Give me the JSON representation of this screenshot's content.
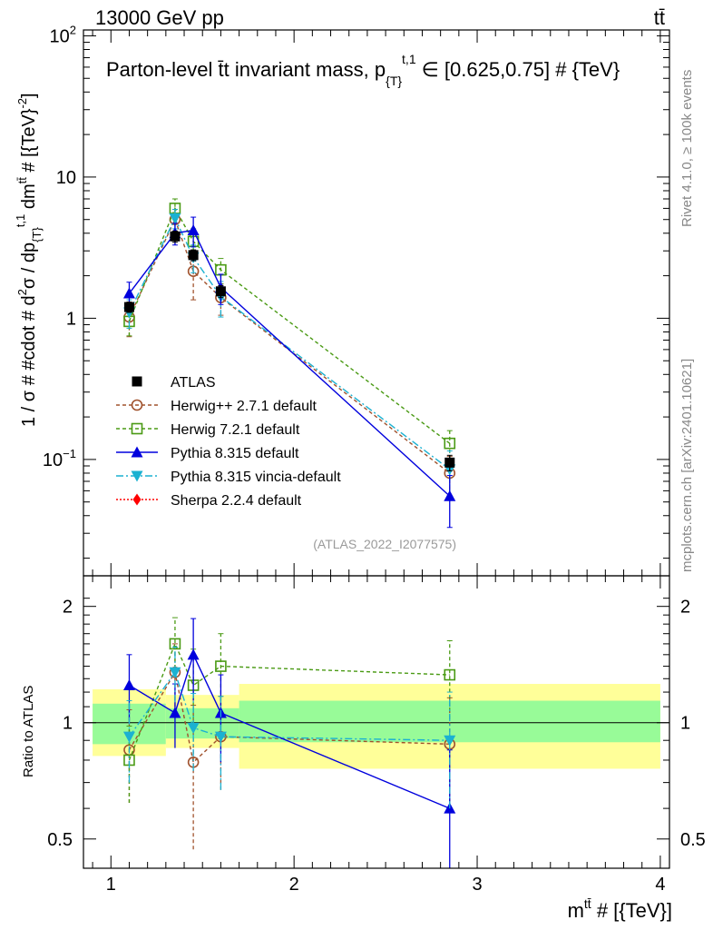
{
  "header": {
    "energy_label": "13000 GeV pp",
    "process_label": "tt̄"
  },
  "side_labels": {
    "rivet": "Rivet 4.1.0, ≥ 100k events",
    "mcplots": "mcplots.cern.ch [arXiv:2401.10621]"
  },
  "chart_data": [
    {
      "type": "scatter",
      "panel": "main",
      "title": "Parton-level t̄t invariant mass, p{T}t,1 ∈ [0.625,0.75] # {TeV}",
      "title_main": "Parton-level t̄t invariant mass, p",
      "title_sub": "{T}",
      "title_sup": "t,1",
      "title_tail": "∈ [0.625,0.75] # {TeV}",
      "ylabel": "1 / σ # #cdot # d²σ / dp{T}t,1 dmtt̄ # [{TeV}⁻²]",
      "ylabel_parts": [
        "1 / σ # #cdot # d",
        "2",
        "σ / dp",
        "{T}",
        "t,1",
        " dm",
        "tt̄",
        " # [{TeV}",
        "-2",
        "]"
      ],
      "yscale": "log",
      "ylim": [
        0.015,
        110
      ],
      "xlim": [
        0.85,
        4.05
      ],
      "y_ticks": [
        {
          "value": 100,
          "label": "10",
          "exp": "2"
        },
        {
          "value": 10,
          "label": "10",
          "exp": ""
        },
        {
          "value": 1,
          "label": "1",
          "exp": ""
        },
        {
          "value": 0.1,
          "label": "10",
          "exp": "−1"
        }
      ],
      "watermark": "(ATLAS_2022_I2077575)",
      "legend_position": "lower-left",
      "series": [
        {
          "name": "ATLAS",
          "color": "#000000",
          "marker": "square-filled",
          "dash": "none",
          "x": [
            1.1,
            1.35,
            1.45,
            1.6,
            2.85
          ],
          "values": [
            1.2,
            3.8,
            2.8,
            1.55,
            0.095
          ],
          "err_lo": [
            0.1,
            0.35,
            0.25,
            0.15,
            0.012
          ],
          "err_hi": [
            0.1,
            0.35,
            0.25,
            0.15,
            0.012
          ]
        },
        {
          "name": "Herwig++ 2.7.1 default",
          "color": "#a0522d",
          "marker": "circle-open",
          "dash": "4,3",
          "x": [
            1.1,
            1.35,
            1.45,
            1.6,
            2.85
          ],
          "values": [
            1.02,
            5.0,
            2.15,
            1.4,
            0.08
          ],
          "err_lo": [
            0.28,
            0.9,
            0.8,
            0.35,
            0.025
          ],
          "err_hi": [
            0.28,
            0.9,
            0.8,
            0.35,
            0.025
          ]
        },
        {
          "name": "Herwig 7.2.1 default",
          "color": "#4a9a14",
          "marker": "square-open",
          "dash": "4,3",
          "x": [
            1.1,
            1.35,
            1.45,
            1.6,
            2.85
          ],
          "values": [
            0.95,
            6.0,
            3.5,
            2.2,
            0.13
          ],
          "err_lo": [
            0.2,
            1.0,
            0.8,
            0.45,
            0.03
          ],
          "err_hi": [
            0.2,
            1.0,
            0.8,
            0.45,
            0.03
          ]
        },
        {
          "name": "Pythia 8.315 default",
          "color": "#0000dd",
          "marker": "triangle-up",
          "dash": "none",
          "x": [
            1.1,
            1.35,
            1.45,
            1.6,
            2.85
          ],
          "values": [
            1.5,
            4.0,
            4.2,
            1.65,
            0.055
          ],
          "err_lo": [
            0.3,
            0.7,
            1.0,
            0.4,
            0.022
          ],
          "err_hi": [
            0.3,
            0.7,
            1.0,
            0.4,
            0.022
          ]
        },
        {
          "name": "Pythia 8.315 vincia-default",
          "color": "#1bb1d1",
          "marker": "triangle-down",
          "dash": "8,3,2,3",
          "x": [
            1.1,
            1.35,
            1.45,
            1.6,
            2.85
          ],
          "values": [
            1.1,
            5.1,
            2.7,
            1.42,
            0.085
          ],
          "err_lo": [
            0.25,
            0.8,
            0.6,
            0.4,
            0.03
          ],
          "err_hi": [
            0.25,
            0.8,
            0.6,
            0.4,
            0.03
          ]
        },
        {
          "name": "Sherpa 2.2.4 default",
          "color": "#ff0000",
          "marker": "diamond",
          "dash": "2,2",
          "x": [],
          "values": [],
          "err_lo": [],
          "err_hi": []
        }
      ]
    },
    {
      "type": "scatter",
      "panel": "ratio",
      "ylabel": "Ratio to ATLAS",
      "xlabel": "mtt̄ # [{TeV}]",
      "xlabel_main": "m",
      "xlabel_sup": "tt̄",
      "xlabel_tail": " # [{TeV}]",
      "yscale": "log",
      "ylim": [
        0.42,
        2.4
      ],
      "xlim": [
        0.85,
        4.05
      ],
      "x_ticks": [
        {
          "value": 1,
          "label": "1"
        },
        {
          "value": 2,
          "label": "2"
        },
        {
          "value": 3,
          "label": "3"
        },
        {
          "value": 4,
          "label": "4"
        }
      ],
      "y_ticks": [
        {
          "value": 2,
          "label": "2"
        },
        {
          "value": 1,
          "label": "1"
        },
        {
          "value": 0.5,
          "label": "0.5"
        }
      ],
      "uncertainty_bands": [
        {
          "x_range": [
            0.9,
            1.3
          ],
          "inner": [
            0.88,
            1.12
          ],
          "outer": [
            0.82,
            1.22
          ]
        },
        {
          "x_range": [
            1.3,
            1.7
          ],
          "inner": [
            0.91,
            1.09
          ],
          "outer": [
            0.86,
            1.18
          ]
        },
        {
          "x_range": [
            1.7,
            4.0
          ],
          "inner": [
            0.89,
            1.14
          ],
          "outer": [
            0.76,
            1.26
          ]
        }
      ],
      "band_colors": {
        "inner": "#98fb98",
        "outer": "#ffff99"
      },
      "series": [
        {
          "name": "Herwig++ 2.7.1 default",
          "x": [
            1.1,
            1.35,
            1.45,
            1.6,
            2.85
          ],
          "values": [
            0.85,
            1.35,
            0.79,
            0.92,
            0.88
          ],
          "err": [
            0.23,
            0.25,
            0.32,
            0.25,
            0.28
          ]
        },
        {
          "name": "Herwig 7.2.1 default",
          "x": [
            1.1,
            1.35,
            1.45,
            1.6,
            2.85
          ],
          "values": [
            0.8,
            1.6,
            1.25,
            1.4,
            1.33
          ],
          "err": [
            0.18,
            0.27,
            0.3,
            0.3,
            0.3
          ]
        },
        {
          "name": "Pythia 8.315 default",
          "x": [
            1.1,
            1.35,
            1.45,
            1.6,
            2.85
          ],
          "values": [
            1.25,
            1.06,
            1.5,
            1.06,
            0.6
          ],
          "err": [
            0.25,
            0.2,
            0.36,
            0.27,
            0.25
          ]
        },
        {
          "name": "Pythia 8.315 vincia-default",
          "x": [
            1.1,
            1.35,
            1.45,
            1.6,
            2.85
          ],
          "values": [
            0.92,
            1.35,
            0.97,
            0.92,
            0.9
          ],
          "err": [
            0.22,
            0.22,
            0.22,
            0.25,
            0.3
          ]
        }
      ]
    }
  ]
}
